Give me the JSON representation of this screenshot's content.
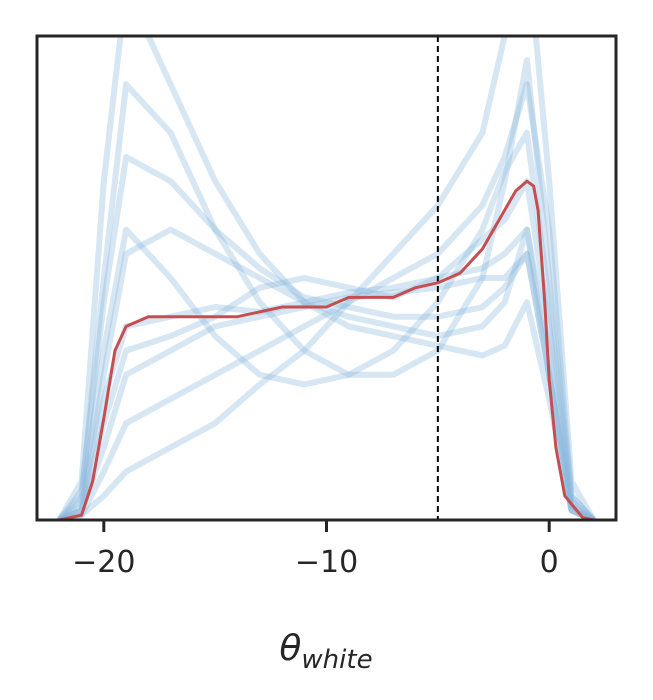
{
  "chart_data": {
    "type": "line",
    "xlim": [
      -23,
      3
    ],
    "ylim": [
      0,
      1
    ],
    "xticks": [
      {
        "value": -20,
        "label": "−20"
      },
      {
        "value": -10,
        "label": "−10"
      },
      0
    ],
    "xlabel": {
      "symbol": "θ",
      "subscript": "white"
    },
    "vline": -5,
    "sample_color": "#8ab8de",
    "sample_x": [
      -22,
      -21,
      -20,
      -19,
      -17,
      -15,
      -13,
      -11,
      -9,
      -7,
      -5,
      -3,
      -2,
      -1,
      0,
      1,
      2
    ],
    "samples": [
      [
        0,
        0.02,
        0.3,
        0.55,
        0.6,
        0.55,
        0.5,
        0.45,
        0.42,
        0.4,
        0.38,
        0.4,
        0.45,
        0.6,
        0.3,
        0.02,
        0
      ],
      [
        0,
        0.05,
        0.5,
        0.9,
        0.8,
        0.6,
        0.45,
        0.35,
        0.3,
        0.3,
        0.35,
        0.5,
        0.7,
        0.95,
        0.5,
        0.05,
        0
      ],
      [
        0,
        0.01,
        0.1,
        0.2,
        0.25,
        0.3,
        0.35,
        0.4,
        0.45,
        0.5,
        0.55,
        0.65,
        0.75,
        0.9,
        0.6,
        0.05,
        0
      ],
      [
        0,
        0.03,
        0.25,
        0.4,
        0.42,
        0.44,
        0.43,
        0.45,
        0.47,
        0.48,
        0.5,
        0.52,
        0.55,
        0.6,
        0.35,
        0.03,
        0
      ],
      [
        0,
        0.08,
        0.7,
        1.1,
        0.9,
        0.7,
        0.55,
        0.45,
        0.4,
        0.38,
        0.36,
        0.34,
        0.36,
        0.45,
        0.25,
        0.02,
        0
      ],
      [
        0,
        0.01,
        0.05,
        0.1,
        0.15,
        0.2,
        0.28,
        0.35,
        0.45,
        0.55,
        0.65,
        0.8,
        1.0,
        1.2,
        0.7,
        0.08,
        0
      ],
      [
        0,
        0.02,
        0.2,
        0.35,
        0.38,
        0.42,
        0.48,
        0.5,
        0.48,
        0.46,
        0.5,
        0.58,
        0.62,
        0.7,
        0.4,
        0.03,
        0
      ],
      [
        0,
        0.04,
        0.35,
        0.6,
        0.5,
        0.38,
        0.3,
        0.28,
        0.3,
        0.35,
        0.45,
        0.6,
        0.72,
        0.8,
        0.45,
        0.04,
        0
      ],
      [
        0,
        0.02,
        0.15,
        0.3,
        0.35,
        0.4,
        0.42,
        0.44,
        0.46,
        0.47,
        0.48,
        0.5,
        0.5,
        0.55,
        0.3,
        0.02,
        0
      ],
      [
        0,
        0.06,
        0.45,
        0.75,
        0.7,
        0.6,
        0.52,
        0.46,
        0.44,
        0.42,
        0.42,
        0.44,
        0.48,
        0.55,
        0.3,
        0.02,
        0
      ]
    ],
    "mean_color": "#c44e52",
    "x": [
      -22,
      -21,
      -20.5,
      -20,
      -19.5,
      -19,
      -18,
      -16,
      -14,
      -13,
      -12,
      -11,
      -10,
      -9,
      -8,
      -7,
      -6,
      -5,
      -4,
      -3,
      -2,
      -1.5,
      -1,
      -0.7,
      -0.5,
      -0.2,
      0,
      0.3,
      0.7,
      1.5,
      2
    ],
    "values": [
      0,
      0.01,
      0.08,
      0.21,
      0.35,
      0.4,
      0.42,
      0.42,
      0.42,
      0.43,
      0.44,
      0.44,
      0.44,
      0.46,
      0.46,
      0.46,
      0.48,
      0.49,
      0.51,
      0.56,
      0.64,
      0.68,
      0.7,
      0.69,
      0.64,
      0.45,
      0.29,
      0.15,
      0.05,
      0.005,
      0
    ]
  }
}
